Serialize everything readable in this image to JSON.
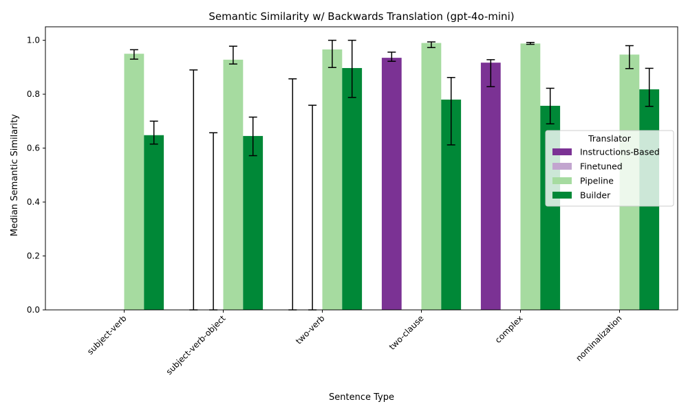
{
  "chart_data": {
    "type": "bar",
    "title": "Semantic Similarity w/ Backwards Translation (gpt-4o-mini)",
    "xlabel": "Sentence Type",
    "ylabel": "Median Semantic Similarity",
    "ylim": [
      0,
      1.05
    ],
    "yticks": [
      "0.0",
      "0.2",
      "0.4",
      "0.6",
      "0.8",
      "1.0"
    ],
    "categories": [
      "subject-verb",
      "subject-verb-object",
      "two-verb",
      "two-clause",
      "complex",
      "nominalization"
    ],
    "legend": {
      "title": "Translator",
      "placement": "center-right"
    },
    "series": [
      {
        "name": "Instructions-Based",
        "color": "#7b3294",
        "values": [
          0,
          0,
          0,
          0.935,
          0.917,
          0
        ],
        "error_low": [
          0,
          0,
          0,
          0.922,
          0.828,
          0
        ],
        "error_high": [
          0,
          0.89,
          0.857,
          0.956,
          0.928,
          0
        ]
      },
      {
        "name": "Finetuned",
        "color": "#c2a5cf",
        "values": [
          0,
          0,
          0,
          0,
          0,
          0
        ],
        "error_low": [
          0,
          0,
          0,
          0,
          0,
          0
        ],
        "error_high": [
          0,
          0.657,
          0.759,
          0,
          0,
          0
        ]
      },
      {
        "name": "Pipeline",
        "color": "#a6dba0",
        "values": [
          0.95,
          0.928,
          0.966,
          0.99,
          0.988,
          0.947
        ],
        "error_low": [
          0.93,
          0.912,
          0.899,
          0.973,
          0.985,
          0.895
        ],
        "error_high": [
          0.965,
          0.978,
          1.0,
          0.994,
          0.992,
          0.98
        ]
      },
      {
        "name": "Builder",
        "color": "#008837",
        "values": [
          0.648,
          0.645,
          0.897,
          0.78,
          0.757,
          0.818
        ],
        "error_low": [
          0.615,
          0.572,
          0.788,
          0.612,
          0.69,
          0.755
        ],
        "error_high": [
          0.7,
          0.715,
          1.0,
          0.862,
          0.822,
          0.896
        ]
      }
    ],
    "grid": false
  }
}
